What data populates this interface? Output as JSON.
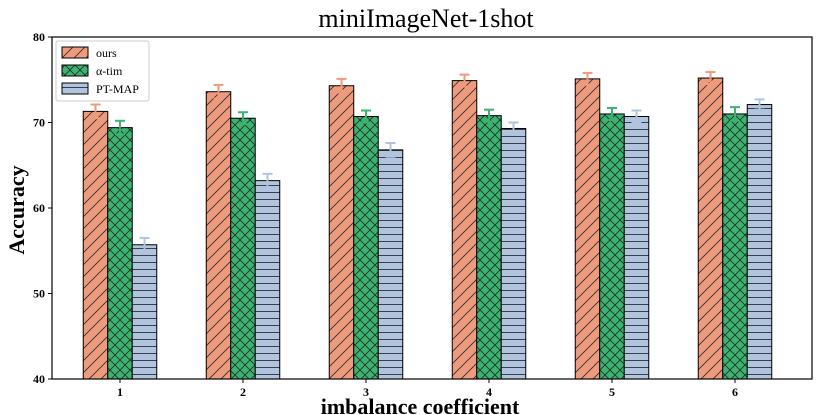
{
  "chart_data": {
    "type": "bar",
    "title": "miniImageNet-1shot",
    "xlabel": "imbalance coefficient",
    "ylabel": "Accuracy",
    "ylim": [
      40,
      80
    ],
    "yticks": [
      40,
      50,
      60,
      70,
      80
    ],
    "categories": [
      "1",
      "2",
      "3",
      "4",
      "5",
      "6"
    ],
    "legend_position": "top-left",
    "grid": false,
    "series": [
      {
        "name": "ours",
        "values": [
          71.3,
          73.6,
          74.3,
          74.9,
          75.1,
          75.2
        ],
        "errors": [
          0.8,
          0.8,
          0.8,
          0.7,
          0.7,
          0.7
        ],
        "color": "#EE9A7C",
        "edge": "#000000",
        "error_color": "#EE9A7C",
        "hatch": "diagonal"
      },
      {
        "name": "α-tim",
        "values": [
          69.4,
          70.5,
          70.7,
          70.8,
          71.0,
          71.0
        ],
        "errors": [
          0.8,
          0.7,
          0.7,
          0.7,
          0.7,
          0.8
        ],
        "color": "#3CB371",
        "edge": "#000000",
        "error_color": "#3CB371",
        "hatch": "cross"
      },
      {
        "name": "PT-MAP",
        "values": [
          55.7,
          63.2,
          66.8,
          69.3,
          70.7,
          72.1
        ],
        "errors": [
          0.8,
          0.8,
          0.8,
          0.7,
          0.7,
          0.6
        ],
        "color": "#B0C4DE",
        "edge": "#000000",
        "error_color": "#B0C4DE",
        "hatch": "horizontal"
      }
    ]
  }
}
